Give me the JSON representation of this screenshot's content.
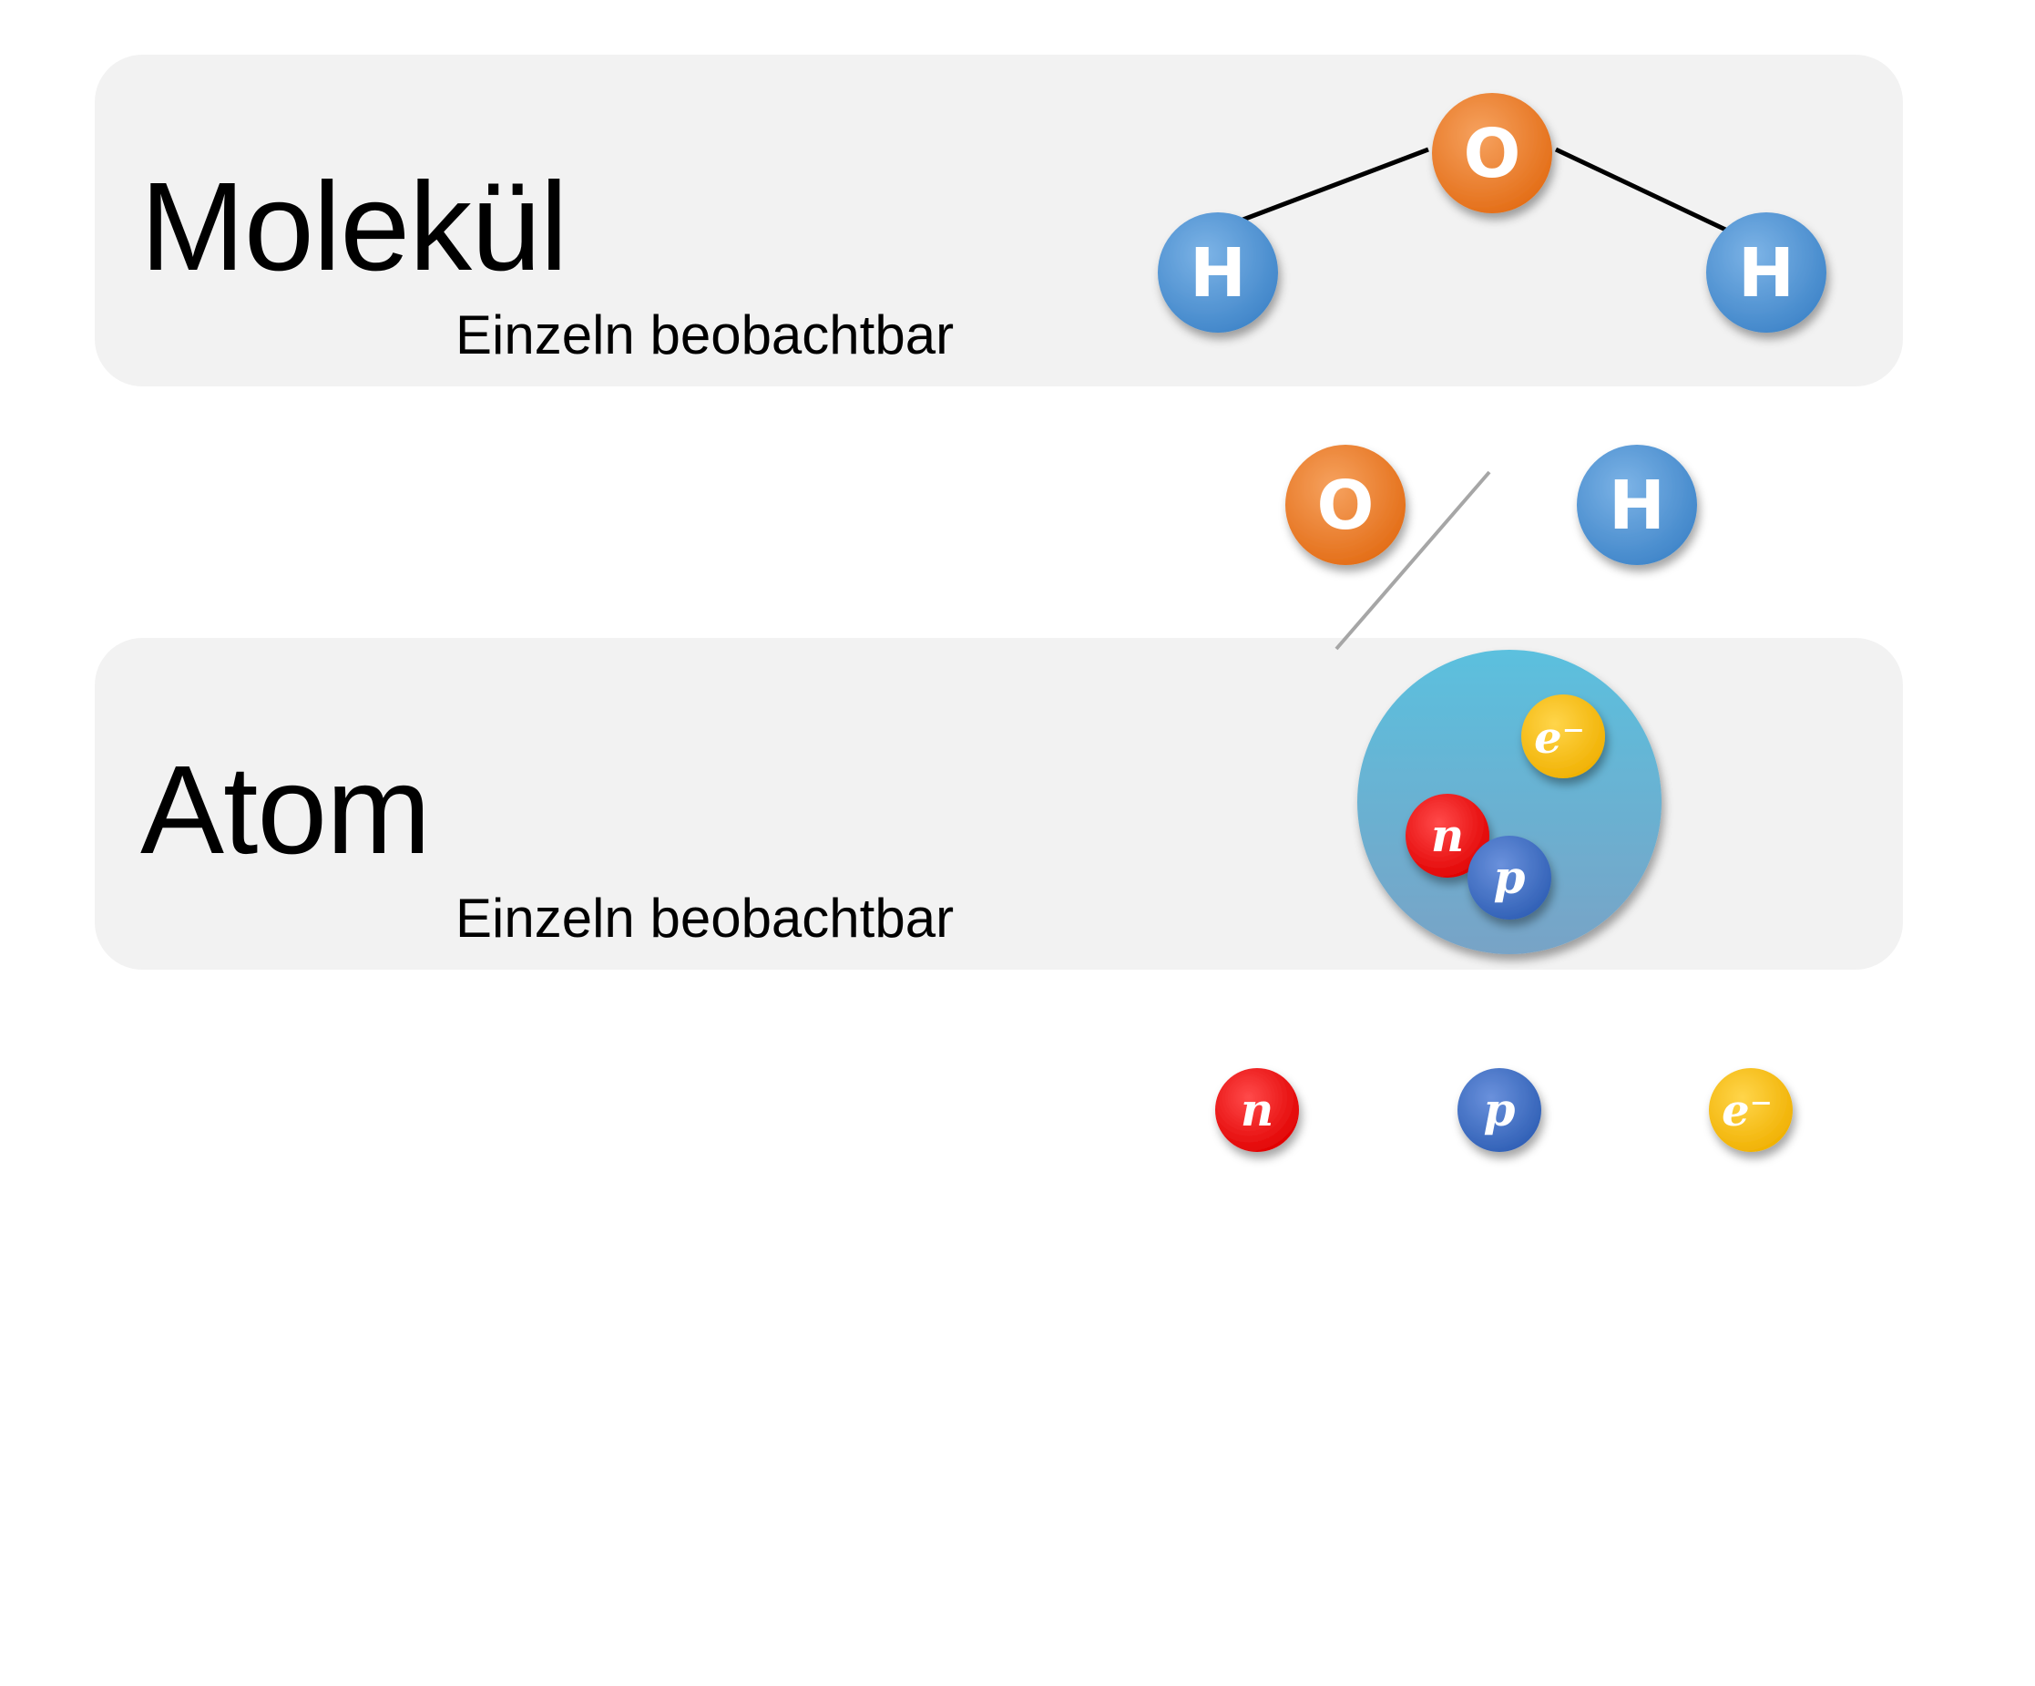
{
  "levels": [
    {
      "title": "Molekül",
      "subtitle": "Einzeln beobachtbar"
    },
    {
      "title": "Atom",
      "subtitle": "Einzeln beobachtbar"
    }
  ],
  "molecule_atoms": [
    "O",
    "H",
    "H"
  ],
  "atoms": [
    "O",
    "H"
  ],
  "nucleus_particles": [
    "n",
    "p"
  ],
  "electron": "e⁻",
  "particles": [
    "n",
    "p",
    "e⁻"
  ],
  "colors": {
    "panel": "#f2f2f2",
    "oxygen": "#ed7d31",
    "hydrogen": "#5b9bd5",
    "neutron": "#ff0000",
    "proton": "#4472c4",
    "electron": "#ffc000",
    "atom_shell": "#62b4d0"
  }
}
